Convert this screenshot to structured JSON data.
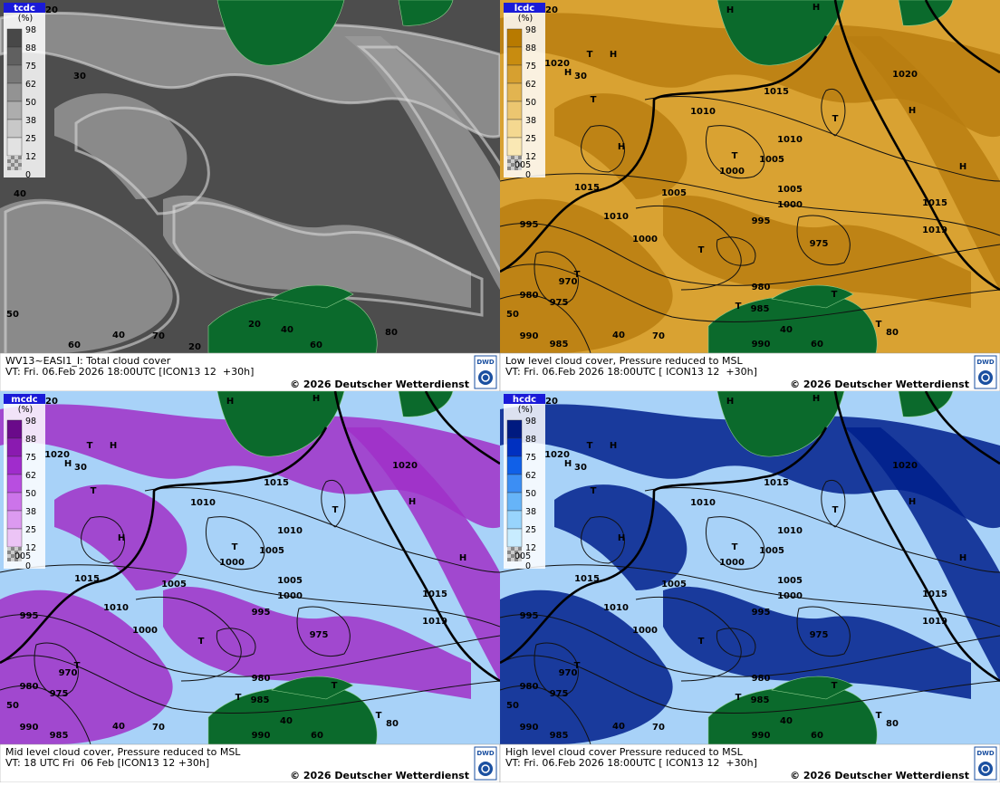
{
  "panels": [
    {
      "legend_title": "tcdc",
      "unit": "(%)",
      "legend_ticks": [
        "98",
        "88",
        "75",
        "62",
        "50",
        "38",
        "25",
        "12",
        "0"
      ],
      "legend_colors": [
        "#484848",
        "#606060",
        "#787878",
        "#939393",
        "#adadad",
        "#c8c8c8",
        "#e2e2e2"
      ],
      "background": "#4d4d4d",
      "cloud_color": "#9a9a9a",
      "map_labels": [
        "20",
        "30",
        "40",
        "50",
        "40",
        "70",
        "60",
        "20",
        "20",
        "40",
        "60",
        "80"
      ],
      "footer": {
        "title": "WV13~EASI1_I: Total cloud cover",
        "valid_time": "VT: Fri. 06.Feb 2026 18:00UTC [ICON13 12  +30h]",
        "copyright": "© 2026 Deutscher Wetterdienst",
        "logo": "DWD"
      }
    },
    {
      "legend_title": "lcdc",
      "unit": "(%)",
      "legend_ticks": [
        "98",
        "88",
        "75",
        "62",
        "50",
        "38",
        "25",
        "12",
        "0"
      ],
      "legend_extra": "005",
      "legend_colors": [
        "#b87a00",
        "#c88c10",
        "#d6a030",
        "#e2b450",
        "#ecc670",
        "#f4d890",
        "#fae8b4"
      ],
      "background": "#d9a232",
      "cloud_color": "#b87e10",
      "map_labels": [
        "20",
        "H",
        "H",
        "1020",
        "H",
        "30",
        "T",
        "H",
        "T",
        "H",
        "1015",
        "1010",
        "T",
        "1010",
        "T",
        "1000",
        "1005",
        "H",
        "1020",
        "H",
        "1015",
        "1005",
        "1005",
        "1000",
        "1010",
        "995",
        "1015",
        "1019",
        "995",
        "1000",
        "T",
        "975",
        "970",
        "T",
        "980",
        "975",
        "980",
        "985",
        "T",
        "T",
        "50",
        "990",
        "985",
        "40",
        "70",
        "40",
        "60",
        "990",
        "T",
        "80"
      ],
      "footer": {
        "title": "Low level cloud cover, Pressure reduced to MSL",
        "valid_time": "VT: Fri. 06.Feb 2026 18:00UTC [ ICON13 12  +30h]",
        "copyright": "© 2026 Deutscher Wetterdienst",
        "logo": "DWD"
      }
    },
    {
      "legend_title": "mcdc",
      "unit": "(%)",
      "legend_ticks": [
        "98",
        "88",
        "75",
        "62",
        "50",
        "38",
        "25",
        "12",
        "0"
      ],
      "legend_extra": "005",
      "legend_colors": [
        "#6a0a8a",
        "#8a1ab0",
        "#a02ccc",
        "#b84ee0",
        "#cc74ea",
        "#dc9af0",
        "#ecc4f6"
      ],
      "background": "#a8d2f8",
      "cloud_color": "#a030c8",
      "map_labels": [
        "20",
        "H",
        "H",
        "1020",
        "H",
        "30",
        "T",
        "H",
        "T",
        "H",
        "1015",
        "1010",
        "T",
        "1010",
        "T",
        "1000",
        "1005",
        "H",
        "1020",
        "H",
        "1015",
        "1005",
        "1005",
        "1000",
        "1010",
        "995",
        "1015",
        "1019",
        "995",
        "1000",
        "T",
        "975",
        "970",
        "T",
        "980",
        "975",
        "980",
        "985",
        "T",
        "T",
        "50",
        "990",
        "985",
        "40",
        "70",
        "40",
        "60",
        "990",
        "T",
        "80"
      ],
      "footer": {
        "title": "Mid level cloud cover, Pressure reduced to MSL",
        "valid_time": "VT: 18 UTC Fri  06 Feb [ICON13 12 +30h]",
        "copyright": "© 2026 Deutscher Wetterdienst",
        "logo": "DWD"
      }
    },
    {
      "legend_title": "hcdc",
      "unit": "(%)",
      "legend_ticks": [
        "98",
        "88",
        "75",
        "62",
        "50",
        "38",
        "25",
        "12",
        "0"
      ],
      "legend_extra": "005",
      "legend_colors": [
        "#001a80",
        "#0030c0",
        "#1060e8",
        "#3c8ef4",
        "#66b4f8",
        "#98d4fc",
        "#c8ecff"
      ],
      "background": "#a8d2f8",
      "cloud_color": "#00208c",
      "map_labels": [
        "20",
        "H",
        "H",
        "1020",
        "H",
        "30",
        "T",
        "H",
        "T",
        "H",
        "1015",
        "1010",
        "T",
        "1010",
        "T",
        "1000",
        "1005",
        "H",
        "1020",
        "H",
        "1015",
        "1005",
        "1005",
        "1000",
        "1010",
        "995",
        "1015",
        "1019",
        "995",
        "1000",
        "T",
        "975",
        "970",
        "T",
        "980",
        "975",
        "980",
        "985",
        "T",
        "T",
        "50",
        "990",
        "985",
        "40",
        "70",
        "40",
        "60",
        "990",
        "T",
        "80"
      ],
      "footer": {
        "title": "High level cloud cover Pressure reduced to MSL",
        "valid_time": "VT: Fri. 06.Feb 2026 18:00UTC [ ICON13 12  +30h]",
        "copyright": "© 2026 Deutscher Wetterdienst",
        "logo": "DWD"
      }
    }
  ]
}
